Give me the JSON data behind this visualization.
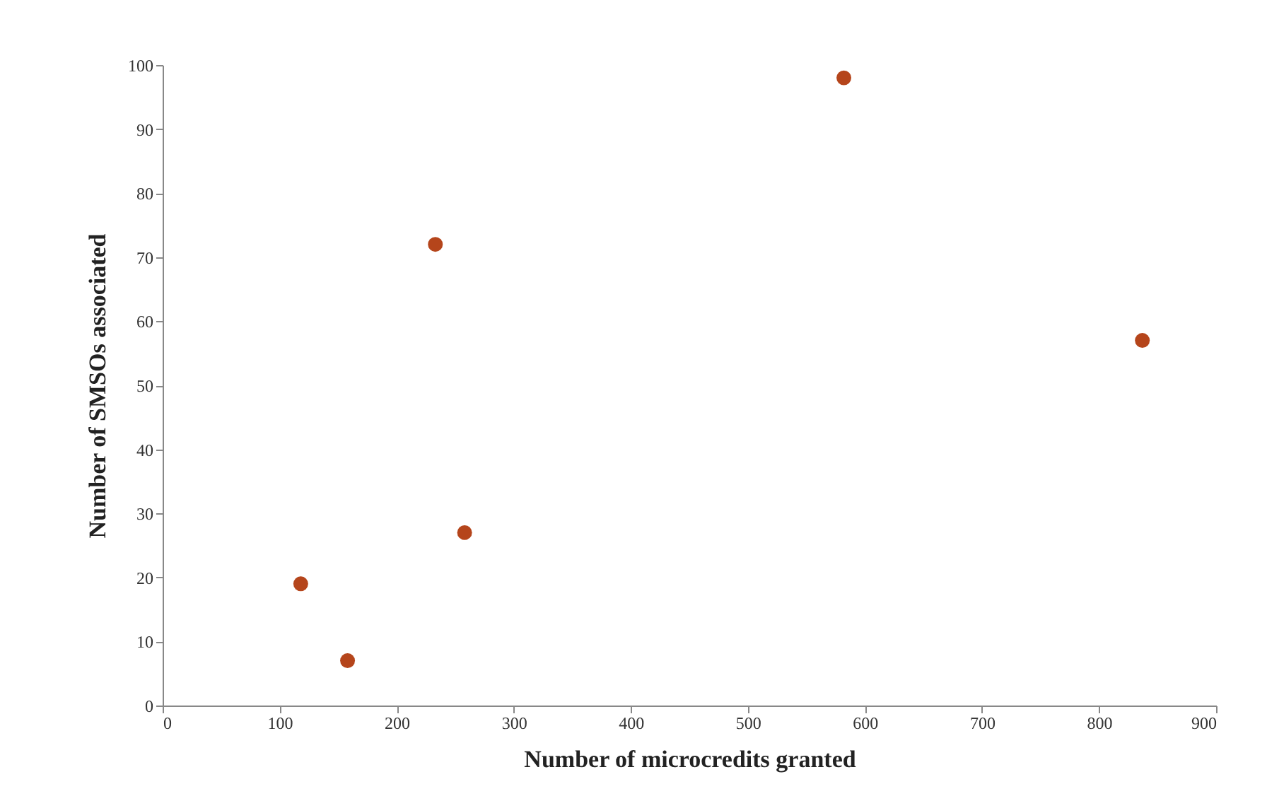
{
  "chart_data": {
    "type": "scatter",
    "xlabel": "Number of microcredits granted",
    "ylabel": "Number of SMSOs associated",
    "x": [
      118,
      158,
      233,
      258,
      582,
      837
    ],
    "series": [
      {
        "color": "#b5451b",
        "values": [
          19,
          7,
          72,
          27,
          98,
          57
        ]
      }
    ],
    "xlim": [
      0,
      900
    ],
    "xticks": [
      0,
      100,
      200,
      300,
      400,
      500,
      600,
      700,
      800,
      900
    ],
    "ylim": [
      0,
      100
    ],
    "yticks": [
      0,
      10,
      20,
      30,
      40,
      50,
      60,
      70,
      80,
      90,
      100
    ],
    "grid": false,
    "marker": "circle"
  }
}
